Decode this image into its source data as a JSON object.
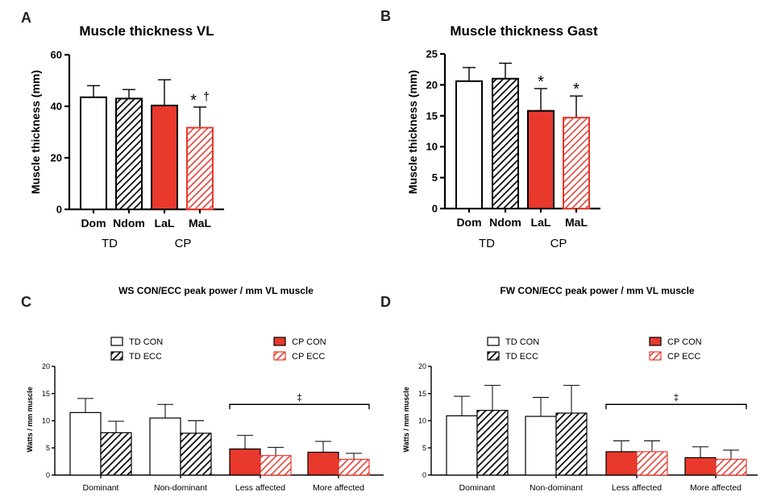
{
  "colors": {
    "red": "#e8392c",
    "black": "#000000",
    "white": "#ffffff"
  },
  "chart_data": [
    {
      "panel": "A",
      "type": "bar",
      "title": "Muscle thickness VL",
      "ylabel": "Muscle thickness (mm)",
      "ylim": [
        0,
        60
      ],
      "yticks": [
        0,
        20,
        40,
        60
      ],
      "categories": [
        "Dom",
        "Ndom",
        "LaL",
        "MaL"
      ],
      "values": [
        43.5,
        43.0,
        40.3,
        31.7
      ],
      "errors": [
        4.5,
        3.5,
        10.0,
        8.0
      ],
      "fills": [
        "white",
        "black-hatch",
        "red",
        "red-hatch"
      ],
      "groups": [
        {
          "label": "TD",
          "categories": [
            "Dom",
            "Ndom"
          ]
        },
        {
          "label": "CP",
          "categories": [
            "LaL",
            "MaL"
          ]
        }
      ],
      "annotations": [
        {
          "category": "MaL",
          "text": "*"
        },
        {
          "category": "MaL",
          "text": "†"
        }
      ]
    },
    {
      "panel": "B",
      "type": "bar",
      "title": "Muscle thickness Gast",
      "ylabel": "Muscle thickness (mm)",
      "ylim": [
        0,
        25
      ],
      "yticks": [
        0,
        5,
        10,
        15,
        20,
        25
      ],
      "categories": [
        "Dom",
        "Ndom",
        "LaL",
        "MaL"
      ],
      "values": [
        20.6,
        21.0,
        15.8,
        14.7
      ],
      "errors": [
        2.2,
        2.5,
        3.6,
        3.5
      ],
      "fills": [
        "white",
        "black-hatch",
        "red",
        "red-hatch"
      ],
      "groups": [
        {
          "label": "TD",
          "categories": [
            "Dom",
            "Ndom"
          ]
        },
        {
          "label": "CP",
          "categories": [
            "LaL",
            "MaL"
          ]
        }
      ],
      "annotations": [
        {
          "category": "LaL",
          "text": "*"
        },
        {
          "category": "MaL",
          "text": "*"
        }
      ]
    },
    {
      "panel": "C",
      "type": "bar",
      "title": "WS CON/ECC peak power / mm VL muscle",
      "ylabel": "Watts / mm muscle",
      "ylim": [
        0,
        20
      ],
      "yticks": [
        0,
        5,
        10,
        15,
        20
      ],
      "categories": [
        "Dominant",
        "Non-dominant",
        "Less affected",
        "More affected"
      ],
      "series": [
        {
          "name": "CON",
          "values": [
            11.5,
            10.5,
            4.8,
            4.2
          ],
          "errors": [
            2.6,
            2.5,
            2.5,
            2.0
          ]
        },
        {
          "name": "ECC",
          "values": [
            7.8,
            7.7,
            3.6,
            2.9
          ],
          "errors": [
            2.1,
            2.3,
            1.5,
            1.1
          ]
        }
      ],
      "legend": [
        "TD CON",
        "TD ECC",
        "CP CON",
        "CP ECC"
      ],
      "annotations": [
        {
          "text": "‡",
          "span": [
            "Less affected",
            "More affected"
          ]
        }
      ]
    },
    {
      "panel": "D",
      "type": "bar",
      "title": "FW CON/ECC peak power / mm VL muscle",
      "ylabel": "Watts / mm muscle",
      "ylim": [
        0,
        20
      ],
      "yticks": [
        0,
        5,
        10,
        15,
        20
      ],
      "categories": [
        "Dominant",
        "Non-dominant",
        "Less affected",
        "More affected"
      ],
      "series": [
        {
          "name": "CON",
          "values": [
            10.9,
            10.8,
            4.3,
            3.2
          ],
          "errors": [
            3.6,
            3.5,
            2.0,
            2.0
          ]
        },
        {
          "name": "ECC",
          "values": [
            11.9,
            11.4,
            4.3,
            2.9
          ],
          "errors": [
            4.6,
            5.1,
            2.0,
            1.7
          ]
        }
      ],
      "legend": [
        "TD CON",
        "TD ECC",
        "CP CON",
        "CP ECC"
      ],
      "annotations": [
        {
          "text": "‡",
          "span": [
            "Less affected",
            "More affected"
          ]
        }
      ]
    }
  ]
}
